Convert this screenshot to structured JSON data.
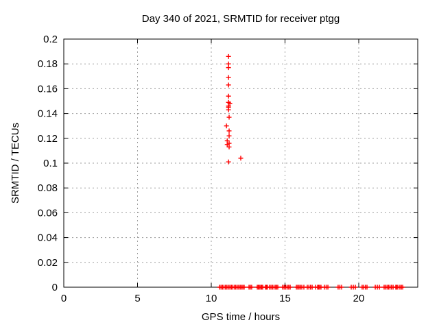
{
  "chart_data": {
    "type": "scatter",
    "title": "Day 340 of 2021, SRMTID for receiver ptgg",
    "xlabel": "GPS time / hours",
    "ylabel": "SRMTID / TECUs",
    "xlim": [
      0,
      24
    ],
    "ylim": [
      0,
      0.2
    ],
    "xticks": [
      0,
      5,
      10,
      15,
      20
    ],
    "xtick_labels": [
      "0",
      "5",
      "10",
      "15",
      "20"
    ],
    "yticks": [
      0,
      0.02,
      0.04,
      0.06,
      0.08,
      0.1,
      0.12,
      0.14,
      0.16,
      0.18,
      0.2
    ],
    "ytick_labels": [
      "0",
      "0.02",
      "0.04",
      "0.06",
      "0.08",
      "0.1",
      "0.12",
      "0.14",
      "0.16",
      "0.18",
      "0.2"
    ],
    "grid": true,
    "legend": "none",
    "marker": "plus",
    "colors": {
      "marker": "#ff0000",
      "axis": "#000000",
      "grid": "#9c9c9c",
      "background": "#ffffff"
    },
    "points": [
      [
        11.17,
        0.186
      ],
      [
        11.17,
        0.18
      ],
      [
        11.17,
        0.177
      ],
      [
        11.17,
        0.169
      ],
      [
        11.17,
        0.163
      ],
      [
        11.17,
        0.154
      ],
      [
        11.17,
        0.149
      ],
      [
        11.26,
        0.148
      ],
      [
        11.17,
        0.146
      ],
      [
        11.17,
        0.145
      ],
      [
        11.17,
        0.143
      ],
      [
        11.21,
        0.137
      ],
      [
        11.03,
        0.13
      ],
      [
        11.21,
        0.126
      ],
      [
        11.21,
        0.122
      ],
      [
        11.08,
        0.118
      ],
      [
        11.21,
        0.116
      ],
      [
        11.08,
        0.115
      ],
      [
        11.21,
        0.113
      ],
      [
        11.17,
        0.101
      ],
      [
        12.0,
        0.104
      ]
    ],
    "baseline_value": 0,
    "baseline_hours": [
      10.56,
      10.66,
      10.76,
      10.86,
      10.96,
      11.06,
      11.16,
      11.26,
      11.36,
      11.46,
      11.56,
      11.66,
      11.76,
      11.86,
      11.96,
      12.05,
      12.14,
      12.23,
      12.56,
      12.65,
      12.74,
      13.12,
      13.19,
      13.26,
      13.35,
      13.42,
      13.49,
      13.67,
      13.74,
      13.81,
      13.95,
      14.05,
      14.16,
      14.26,
      14.37,
      14.42,
      14.51,
      14.84,
      14.94,
      15.05,
      15.15,
      15.25,
      15.35,
      15.77,
      15.86,
      15.95,
      16.05,
      16.14,
      16.28,
      16.51,
      16.62,
      16.73,
      16.84,
      17.07,
      17.21,
      17.28,
      17.35,
      17.44,
      17.67,
      17.79,
      17.91,
      18.6,
      18.72,
      18.84,
      19.49,
      19.63,
      19.77,
      20.23,
      20.34,
      20.45,
      20.56,
      21.12,
      21.26,
      21.4,
      21.72,
      21.82,
      21.92,
      22.02,
      22.12,
      22.22,
      22.33,
      22.51,
      22.58,
      22.65,
      22.79,
      22.89,
      22.98
    ]
  }
}
